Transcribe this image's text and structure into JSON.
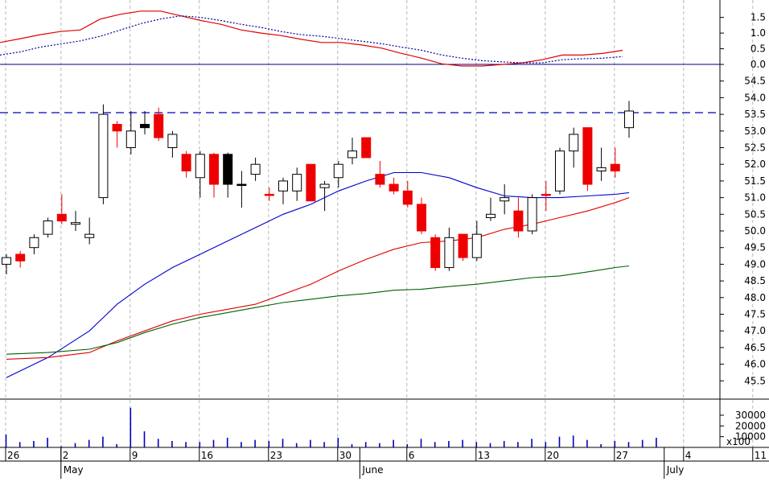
{
  "chart_data": [
    {
      "panel": "oscillator",
      "type": "line",
      "ylim": [
        -0.05,
        1.85
      ],
      "yticks": [
        "1.5",
        "1.0",
        "0.5",
        "0.0"
      ],
      "ytick_values": [
        1.5,
        1.0,
        0.5,
        0.0
      ],
      "zero_line": 0.0,
      "series": [
        {
          "color": "#e00000",
          "style": "solid",
          "values": [
            0.7,
            0.82,
            0.95,
            1.05,
            1.1,
            1.45,
            1.6,
            1.7,
            1.7,
            1.55,
            1.4,
            1.28,
            1.1,
            1.0,
            0.92,
            0.8,
            0.7,
            0.7,
            0.62,
            0.52,
            0.35,
            0.2,
            0.02,
            -0.05,
            -0.05,
            0.0,
            0.05,
            0.15,
            0.3,
            0.3,
            0.35,
            0.45
          ]
        },
        {
          "color": "#0000a0",
          "style": "dotted",
          "values": [
            0.3,
            0.4,
            0.55,
            0.65,
            0.75,
            0.9,
            1.1,
            1.3,
            1.45,
            1.55,
            1.5,
            1.4,
            1.28,
            1.18,
            1.05,
            0.95,
            0.9,
            0.82,
            0.74,
            0.66,
            0.55,
            0.45,
            0.3,
            0.2,
            0.12,
            0.08,
            0.05,
            0.05,
            0.15,
            0.18,
            0.2,
            0.25
          ]
        }
      ]
    },
    {
      "panel": "price",
      "type": "candlestick",
      "ylim": [
        45.0,
        55.0
      ],
      "yticks": [
        "54.5",
        "54.0",
        "53.5",
        "53.0",
        "52.5",
        "52.0",
        "51.5",
        "51.0",
        "50.5",
        "50.0",
        "49.5",
        "49.0",
        "48.5",
        "48.0",
        "47.5",
        "47.0",
        "46.5",
        "46.0",
        "45.5"
      ],
      "ytick_values": [
        54.5,
        54.0,
        53.5,
        53.0,
        52.5,
        52.0,
        51.5,
        51.0,
        50.5,
        50.0,
        49.5,
        49.0,
        48.5,
        48.0,
        47.5,
        47.0,
        46.5,
        46.0,
        45.5
      ],
      "resistance_line": 53.55,
      "x_ticks": [
        "26",
        "2",
        "9",
        "16",
        "23",
        "30",
        "6",
        "13",
        "20",
        "27",
        "4",
        "11"
      ],
      "x_tick_slots": [
        0,
        4,
        9,
        14,
        19,
        24,
        29,
        34,
        39,
        44,
        49,
        54
      ],
      "months": [
        {
          "label": "May",
          "slot": 4
        },
        {
          "label": "June",
          "slot": 25.6
        },
        {
          "label": "July",
          "slot": 47.6
        }
      ],
      "candles": [
        {
          "o": 49.0,
          "h": 49.3,
          "l": 48.7,
          "c": 49.2,
          "color": "white"
        },
        {
          "o": 49.3,
          "h": 49.4,
          "l": 48.9,
          "c": 49.1,
          "color": "red"
        },
        {
          "o": 49.5,
          "h": 49.9,
          "l": 49.3,
          "c": 49.8,
          "color": "white"
        },
        {
          "o": 49.9,
          "h": 50.4,
          "l": 49.8,
          "c": 50.3,
          "color": "white"
        },
        {
          "o": 50.5,
          "h": 51.1,
          "l": 50.2,
          "c": 50.3,
          "color": "red"
        },
        {
          "o": 50.2,
          "h": 50.6,
          "l": 50.0,
          "c": 50.25,
          "color": "white"
        },
        {
          "o": 49.9,
          "h": 50.4,
          "l": 49.6,
          "c": 49.8,
          "color": "white"
        },
        {
          "o": 51.0,
          "h": 53.8,
          "l": 50.8,
          "c": 53.5,
          "color": "white"
        },
        {
          "o": 53.2,
          "h": 53.3,
          "l": 52.5,
          "c": 53.0,
          "color": "red"
        },
        {
          "o": 52.5,
          "h": 53.6,
          "l": 52.3,
          "c": 53.0,
          "color": "white"
        },
        {
          "o": 53.1,
          "h": 53.6,
          "l": 52.9,
          "c": 53.2,
          "color": "black"
        },
        {
          "o": 53.5,
          "h": 53.7,
          "l": 52.7,
          "c": 52.8,
          "color": "red"
        },
        {
          "o": 52.5,
          "h": 53.0,
          "l": 52.2,
          "c": 52.9,
          "color": "white"
        },
        {
          "o": 52.3,
          "h": 52.4,
          "l": 51.6,
          "c": 51.8,
          "color": "red"
        },
        {
          "o": 51.6,
          "h": 52.4,
          "l": 51.0,
          "c": 52.3,
          "color": "white"
        },
        {
          "o": 52.3,
          "h": 52.35,
          "l": 51.0,
          "c": 51.4,
          "color": "red"
        },
        {
          "o": 52.3,
          "h": 52.35,
          "l": 51.0,
          "c": 51.4,
          "color": "black"
        },
        {
          "o": 51.4,
          "h": 51.8,
          "l": 50.7,
          "c": 51.4,
          "color": "black"
        },
        {
          "o": 51.7,
          "h": 52.2,
          "l": 51.5,
          "c": 52.0,
          "color": "white"
        },
        {
          "o": 51.1,
          "h": 51.3,
          "l": 50.9,
          "c": 51.1,
          "color": "red"
        },
        {
          "o": 51.2,
          "h": 51.6,
          "l": 50.8,
          "c": 51.5,
          "color": "white"
        },
        {
          "o": 51.2,
          "h": 51.9,
          "l": 50.9,
          "c": 51.7,
          "color": "white"
        },
        {
          "o": 52.0,
          "h": 52.0,
          "l": 50.9,
          "c": 50.9,
          "color": "red"
        },
        {
          "o": 51.3,
          "h": 51.5,
          "l": 50.6,
          "c": 51.4,
          "color": "white"
        },
        {
          "o": 51.6,
          "h": 52.1,
          "l": 51.3,
          "c": 52.0,
          "color": "white"
        },
        {
          "o": 52.2,
          "h": 52.8,
          "l": 52.0,
          "c": 52.4,
          "color": "white"
        },
        {
          "o": 52.8,
          "h": 52.8,
          "l": 52.2,
          "c": 52.2,
          "color": "red"
        },
        {
          "o": 51.7,
          "h": 52.1,
          "l": 51.3,
          "c": 51.4,
          "color": "red"
        },
        {
          "o": 51.4,
          "h": 51.6,
          "l": 51.1,
          "c": 51.2,
          "color": "red"
        },
        {
          "o": 51.2,
          "h": 51.5,
          "l": 50.7,
          "c": 50.8,
          "color": "red"
        },
        {
          "o": 50.8,
          "h": 51.0,
          "l": 49.9,
          "c": 50.0,
          "color": "red"
        },
        {
          "o": 49.8,
          "h": 49.9,
          "l": 48.8,
          "c": 48.9,
          "color": "red"
        },
        {
          "o": 48.9,
          "h": 50.1,
          "l": 48.8,
          "c": 49.8,
          "color": "white"
        },
        {
          "o": 49.9,
          "h": 49.9,
          "l": 49.1,
          "c": 49.2,
          "color": "red"
        },
        {
          "o": 49.2,
          "h": 50.3,
          "l": 49.1,
          "c": 49.9,
          "color": "white"
        },
        {
          "o": 50.4,
          "h": 51.0,
          "l": 50.3,
          "c": 50.5,
          "color": "white"
        },
        {
          "o": 50.9,
          "h": 51.4,
          "l": 50.5,
          "c": 51.0,
          "color": "white"
        },
        {
          "o": 50.6,
          "h": 51.0,
          "l": 49.8,
          "c": 50.0,
          "color": "red"
        },
        {
          "o": 50.0,
          "h": 51.1,
          "l": 49.9,
          "c": 51.0,
          "color": "white"
        },
        {
          "o": 51.1,
          "h": 51.5,
          "l": 50.6,
          "c": 51.1,
          "color": "red"
        },
        {
          "o": 51.2,
          "h": 52.5,
          "l": 51.1,
          "c": 52.4,
          "color": "white"
        },
        {
          "o": 52.4,
          "h": 53.1,
          "l": 51.9,
          "c": 52.9,
          "color": "white"
        },
        {
          "o": 53.1,
          "h": 53.1,
          "l": 51.2,
          "c": 51.4,
          "color": "red"
        },
        {
          "o": 51.8,
          "h": 52.5,
          "l": 51.5,
          "c": 51.9,
          "color": "white"
        },
        {
          "o": 52.0,
          "h": 52.5,
          "l": 51.6,
          "c": 51.8,
          "color": "red"
        },
        {
          "o": 53.1,
          "h": 53.9,
          "l": 52.8,
          "c": 53.6,
          "color": "white"
        }
      ],
      "series": [
        {
          "color": "#0000d0",
          "points": [
            [
              0,
              45.6
            ],
            [
              3,
              46.2
            ],
            [
              6,
              47.0
            ],
            [
              8,
              47.8
            ],
            [
              10,
              48.4
            ],
            [
              12,
              48.9
            ],
            [
              14,
              49.3
            ],
            [
              16,
              49.7
            ],
            [
              18,
              50.1
            ],
            [
              20,
              50.5
            ],
            [
              22,
              50.8
            ],
            [
              24,
              51.2
            ],
            [
              26,
              51.5
            ],
            [
              28,
              51.75
            ],
            [
              30,
              51.75
            ],
            [
              32,
              51.6
            ],
            [
              34,
              51.3
            ],
            [
              36,
              51.05
            ],
            [
              38,
              51.0
            ],
            [
              40,
              51.0
            ],
            [
              42,
              51.05
            ],
            [
              44,
              51.1
            ],
            [
              45,
              51.15
            ]
          ]
        },
        {
          "color": "#e00000",
          "points": [
            [
              0,
              46.15
            ],
            [
              3,
              46.2
            ],
            [
              6,
              46.35
            ],
            [
              8,
              46.7
            ],
            [
              10,
              47.0
            ],
            [
              12,
              47.3
            ],
            [
              14,
              47.5
            ],
            [
              16,
              47.65
            ],
            [
              18,
              47.8
            ],
            [
              20,
              48.1
            ],
            [
              22,
              48.4
            ],
            [
              24,
              48.8
            ],
            [
              26,
              49.15
            ],
            [
              28,
              49.45
            ],
            [
              30,
              49.65
            ],
            [
              32,
              49.7
            ],
            [
              34,
              49.8
            ],
            [
              36,
              50.05
            ],
            [
              38,
              50.2
            ],
            [
              40,
              50.4
            ],
            [
              42,
              50.6
            ],
            [
              44,
              50.85
            ],
            [
              45,
              51.0
            ]
          ]
        },
        {
          "color": "#006000",
          "points": [
            [
              0,
              46.3
            ],
            [
              3,
              46.35
            ],
            [
              6,
              46.45
            ],
            [
              8,
              46.65
            ],
            [
              10,
              46.95
            ],
            [
              12,
              47.2
            ],
            [
              14,
              47.4
            ],
            [
              16,
              47.55
            ],
            [
              18,
              47.7
            ],
            [
              20,
              47.85
            ],
            [
              22,
              47.95
            ],
            [
              24,
              48.05
            ],
            [
              26,
              48.12
            ],
            [
              28,
              48.22
            ],
            [
              30,
              48.25
            ],
            [
              32,
              48.33
            ],
            [
              34,
              48.4
            ],
            [
              36,
              48.5
            ],
            [
              38,
              48.6
            ],
            [
              40,
              48.65
            ],
            [
              42,
              48.77
            ],
            [
              44,
              48.9
            ],
            [
              45,
              48.95
            ]
          ]
        }
      ]
    },
    {
      "panel": "volume",
      "type": "bar",
      "ylim": [
        0,
        42000
      ],
      "yticks": [
        "30000",
        "20000",
        "10000"
      ],
      "ytick_values": [
        30000,
        20000,
        10000
      ],
      "scale_label": "x100",
      "values": [
        12000,
        5000,
        6000,
        9000,
        1000,
        4000,
        7000,
        10000,
        3000,
        37000,
        15000,
        8000,
        6000,
        5000,
        5000,
        7000,
        9000,
        5000,
        7000,
        6000,
        8000,
        4000,
        7000,
        5000,
        9000,
        3000,
        5000,
        4000,
        7000,
        3000,
        8000,
        5000,
        6000,
        7000,
        5000,
        4000,
        6000,
        5000,
        8000,
        5000,
        10000,
        11000,
        7000,
        3000,
        6000,
        5000,
        7000,
        9000
      ]
    }
  ]
}
